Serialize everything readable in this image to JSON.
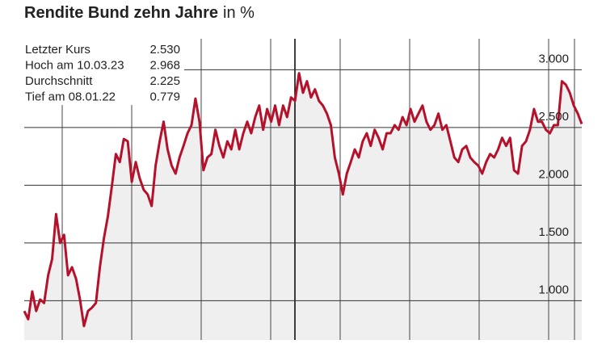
{
  "chart_data": {
    "type": "line",
    "title": "Rendite Bund zehn Jahre",
    "title_unit": "in %",
    "stats": [
      {
        "label": "Letzter Kurs",
        "value": "2.530"
      },
      {
        "label": "Hoch am 10.03.23",
        "value": "2.968"
      },
      {
        "label": "Durchschnitt",
        "value": "2.225"
      },
      {
        "label": "Tief am 08.01.22",
        "value": "0.779"
      }
    ],
    "series": [
      {
        "color": "#b5112b",
        "values": [
          0.91,
          0.84,
          1.08,
          0.91,
          1.01,
          0.98,
          1.22,
          1.36,
          1.75,
          1.5,
          1.57,
          1.22,
          1.29,
          1.19,
          1.01,
          0.78,
          0.91,
          0.94,
          0.98,
          1.29,
          1.54,
          1.73,
          1.99,
          2.27,
          2.2,
          2.4,
          2.38,
          2.03,
          2.2,
          2.06,
          1.96,
          1.92,
          1.82,
          2.17,
          2.38,
          2.55,
          2.31,
          2.17,
          2.1,
          2.24,
          2.34,
          2.45,
          2.52,
          2.75,
          2.55,
          2.13,
          2.24,
          2.27,
          2.48,
          2.34,
          2.24,
          2.38,
          2.31,
          2.48,
          2.31,
          2.45,
          2.55,
          2.45,
          2.59,
          2.69,
          2.48,
          2.66,
          2.55,
          2.69,
          2.52,
          2.69,
          2.59,
          2.76,
          2.73,
          2.97,
          2.8,
          2.9,
          2.76,
          2.83,
          2.73,
          2.69,
          2.62,
          2.52,
          2.24,
          2.1,
          1.92,
          2.1,
          2.2,
          2.31,
          2.24,
          2.38,
          2.45,
          2.34,
          2.48,
          2.41,
          2.31,
          2.45,
          2.45,
          2.52,
          2.48,
          2.59,
          2.52,
          2.66,
          2.55,
          2.62,
          2.69,
          2.55,
          2.48,
          2.52,
          2.62,
          2.48,
          2.52,
          2.38,
          2.24,
          2.2,
          2.31,
          2.34,
          2.24,
          2.2,
          2.17,
          2.1,
          2.2,
          2.27,
          2.24,
          2.31,
          2.41,
          2.34,
          2.41,
          2.13,
          2.1,
          2.34,
          2.38,
          2.48,
          2.66,
          2.55,
          2.55,
          2.48,
          2.45,
          2.52,
          2.52,
          2.9,
          2.87,
          2.8,
          2.69,
          2.62,
          2.53
        ]
      }
    ],
    "ylim": [
      0.66,
      3.24
    ],
    "yticks": [
      {
        "value": 1,
        "label": "1.000"
      },
      {
        "value": 1.5,
        "label": "1.500"
      },
      {
        "value": 2,
        "label": "2.000"
      },
      {
        "value": 2.5,
        "label": "2.500"
      },
      {
        "value": 3,
        "label": "3.000"
      }
    ],
    "grid": true
  }
}
